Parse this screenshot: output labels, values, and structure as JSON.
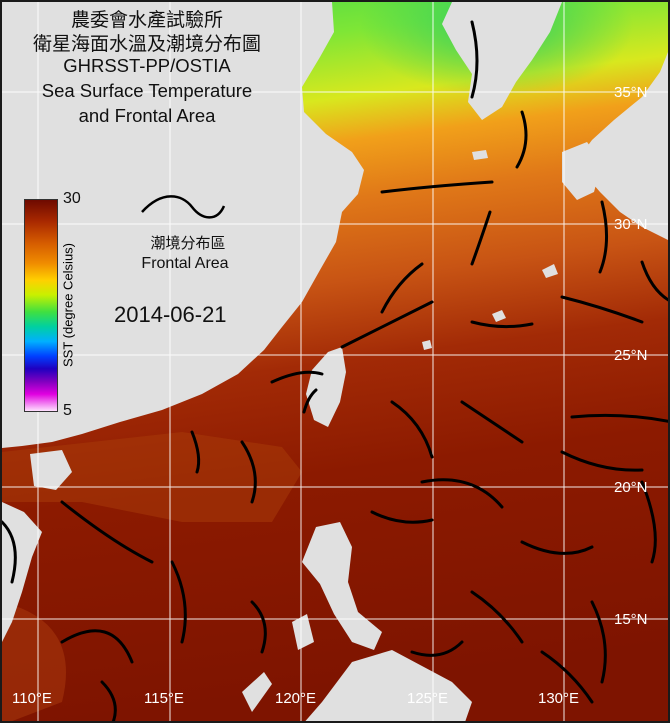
{
  "title": {
    "line1": "農委會水產試驗所",
    "line2": "衛星海面水溫及潮境分布圖",
    "line3": "GHRSST-PP/OSTIA",
    "line4": "Sea Surface Temperature",
    "line5": "and Frontal Area"
  },
  "date": "2014-06-21",
  "colorbar": {
    "max_label": "30",
    "min_label": "5",
    "title": "SST (degree Celsius)",
    "range": [
      5,
      30
    ]
  },
  "front_legend": {
    "label_zh": "潮境分布區",
    "label_en": "Frontal Area"
  },
  "grid": {
    "lon_labels": [
      "110°E",
      "115°E",
      "120°E",
      "125°E",
      "130°E"
    ],
    "lat_labels": [
      "35°N",
      "30°N",
      "25°N",
      "20°N",
      "15°N"
    ]
  },
  "colors": {
    "land": "#e0e0e0",
    "sst_warm": "#8a1a00",
    "sst_orange": "#d86a10",
    "sst_yellow": "#f2d81a",
    "sst_green": "#55e040",
    "front_line": "#000000",
    "grid_line": "#ffffff"
  }
}
